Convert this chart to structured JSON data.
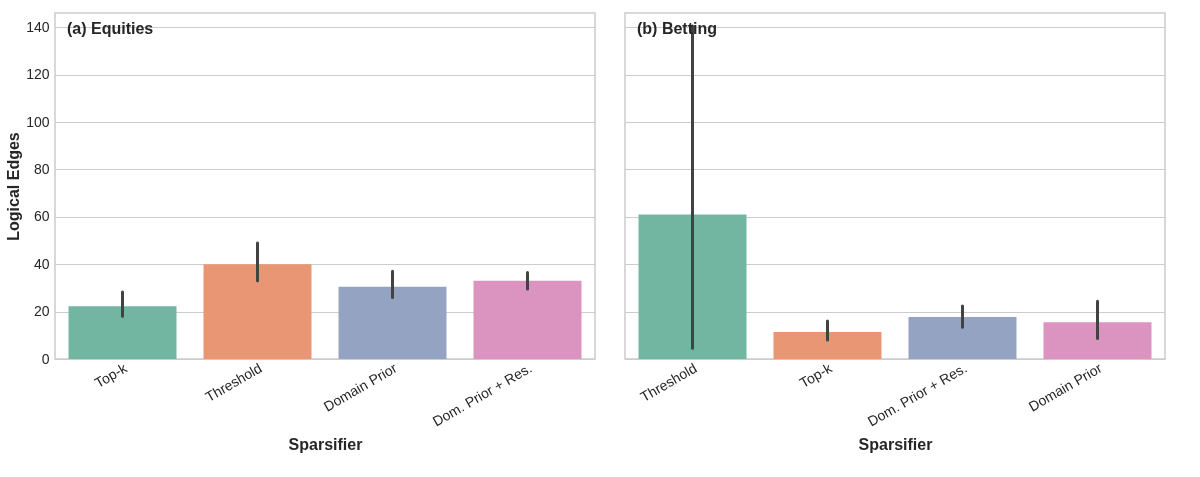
{
  "chart_data": [
    {
      "type": "bar",
      "title": "(a) Equities",
      "xlabel": "Sparsifier",
      "ylabel": "Logical Edges",
      "categories": [
        "Top-k",
        "Threshold",
        "Domain Prior",
        "Dom. Prior + Res."
      ],
      "values": [
        22.3,
        40,
        30.5,
        33
      ],
      "colors": [
        "#72b6a1",
        "#e99675",
        "#95a3c3",
        "#db94c0"
      ],
      "errors": [
        [
          18,
          28.3
        ],
        [
          33,
          49
        ],
        [
          26,
          37
        ],
        [
          29.5,
          36.5
        ]
      ],
      "ylim": [
        0,
        146
      ],
      "yticks": [
        0,
        20,
        40,
        60,
        80,
        100,
        120,
        140
      ],
      "grid": "y"
    },
    {
      "type": "bar",
      "title": "(b) Betting",
      "xlabel": "Sparsifier",
      "categories": [
        "Threshold",
        "Top-k",
        "Dom. Prior + Res.",
        "Domain Prior"
      ],
      "values": [
        61,
        11.4,
        17.7,
        15.5
      ],
      "colors": [
        "#72b6a1",
        "#e99675",
        "#95a3c3",
        "#db94c0"
      ],
      "errors": [
        [
          4.5,
          140.5
        ],
        [
          8,
          16
        ],
        [
          13.4,
          22.4
        ],
        [
          8.6,
          24.4
        ]
      ],
      "ylim": [
        0,
        146
      ],
      "yticks": [
        0,
        20,
        40,
        60,
        80,
        100,
        120,
        140
      ],
      "grid": "y",
      "tick_labels": "x"
    }
  ]
}
